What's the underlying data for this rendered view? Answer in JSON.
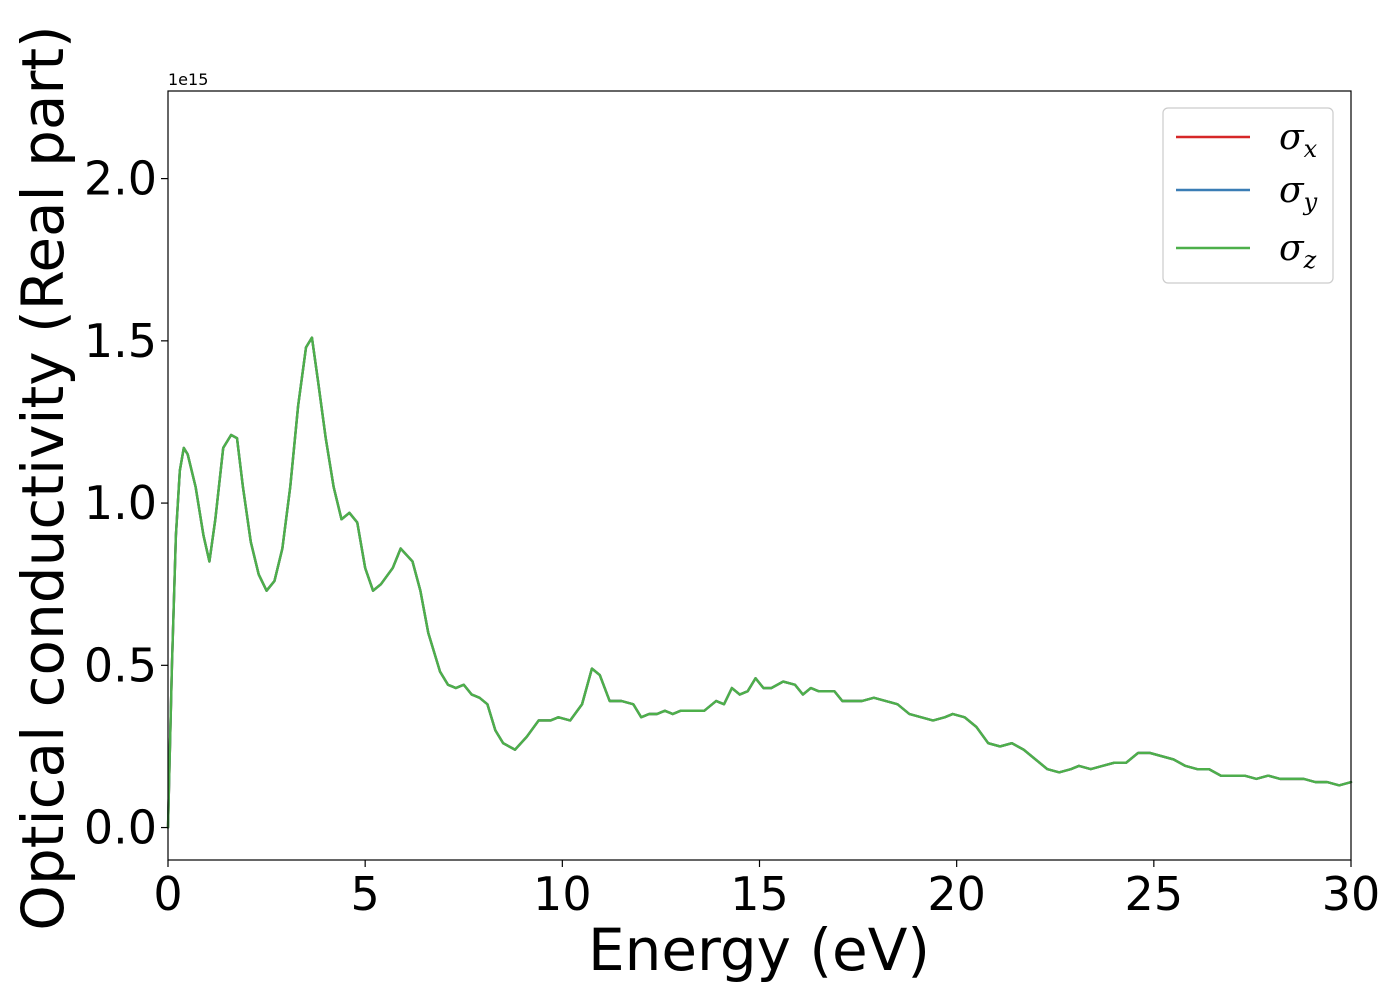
{
  "chart_data": {
    "type": "line",
    "xlabel": "Energy (eV)",
    "ylabel": "Optical conductivity (Real part)",
    "y_offset_text": "1e15",
    "xlim": [
      0,
      30
    ],
    "ylim": [
      -0.1,
      2.27
    ],
    "y_scale_factor": 1000000000000000.0,
    "x_ticks": [
      0,
      5,
      10,
      15,
      20,
      25,
      30
    ],
    "x_tick_labels": [
      "0",
      "5",
      "10",
      "15",
      "20",
      "25",
      "30"
    ],
    "y_ticks": [
      0.0,
      0.5,
      1.0,
      1.5,
      2.0
    ],
    "y_tick_labels": [
      "0.0",
      "0.5",
      "1.0",
      "1.5",
      "2.0"
    ],
    "grid": false,
    "legend_position": "top-right",
    "colors": {
      "sigma_x": "#d62728",
      "sigma_y": "#3a7db5",
      "sigma_z": "#4daf4a"
    },
    "x": [
      0,
      0.1,
      0.2,
      0.3,
      0.4,
      0.5,
      0.7,
      0.9,
      1.05,
      1.2,
      1.4,
      1.6,
      1.75,
      1.9,
      2.1,
      2.3,
      2.5,
      2.7,
      2.9,
      3.1,
      3.3,
      3.5,
      3.65,
      3.8,
      4.0,
      4.2,
      4.4,
      4.6,
      4.8,
      5.0,
      5.2,
      5.4,
      5.7,
      5.9,
      6.2,
      6.4,
      6.6,
      6.9,
      7.1,
      7.3,
      7.5,
      7.7,
      7.9,
      8.1,
      8.3,
      8.5,
      8.8,
      9.1,
      9.4,
      9.7,
      9.9,
      10.2,
      10.5,
      10.75,
      10.95,
      11.2,
      11.5,
      11.8,
      12.0,
      12.2,
      12.4,
      12.6,
      12.8,
      13.0,
      13.3,
      13.6,
      13.9,
      14.1,
      14.3,
      14.5,
      14.7,
      14.9,
      15.1,
      15.3,
      15.6,
      15.9,
      16.1,
      16.3,
      16.5,
      16.7,
      16.9,
      17.1,
      17.3,
      17.6,
      17.9,
      18.2,
      18.5,
      18.8,
      19.1,
      19.4,
      19.7,
      19.9,
      20.2,
      20.5,
      20.8,
      21.1,
      21.4,
      21.7,
      22.0,
      22.3,
      22.6,
      22.9,
      23.1,
      23.4,
      23.7,
      24.0,
      24.3,
      24.6,
      24.9,
      25.2,
      25.5,
      25.8,
      26.1,
      26.4,
      26.7,
      27.0,
      27.3,
      27.6,
      27.9,
      28.2,
      28.5,
      28.8,
      29.1,
      29.4,
      29.7,
      30.0
    ],
    "series": [
      {
        "name": "σx",
        "symbol": "σ",
        "sub": "x",
        "color_key": "sigma_x",
        "values": [
          0,
          0.5,
          0.9,
          1.1,
          1.17,
          1.15,
          1.05,
          0.9,
          0.82,
          0.95,
          1.17,
          1.21,
          1.2,
          1.05,
          0.88,
          0.78,
          0.73,
          0.76,
          0.86,
          1.05,
          1.3,
          1.48,
          1.51,
          1.38,
          1.2,
          1.05,
          0.95,
          0.97,
          0.94,
          0.8,
          0.73,
          0.75,
          0.8,
          0.86,
          0.82,
          0.73,
          0.6,
          0.48,
          0.44,
          0.43,
          0.44,
          0.41,
          0.4,
          0.38,
          0.3,
          0.26,
          0.24,
          0.28,
          0.33,
          0.33,
          0.34,
          0.33,
          0.38,
          0.49,
          0.47,
          0.39,
          0.39,
          0.38,
          0.34,
          0.35,
          0.35,
          0.36,
          0.35,
          0.36,
          0.36,
          0.36,
          0.39,
          0.38,
          0.43,
          0.41,
          0.42,
          0.46,
          0.43,
          0.43,
          0.45,
          0.44,
          0.41,
          0.43,
          0.42,
          0.42,
          0.42,
          0.39,
          0.39,
          0.39,
          0.4,
          0.39,
          0.38,
          0.35,
          0.34,
          0.33,
          0.34,
          0.35,
          0.34,
          0.31,
          0.26,
          0.25,
          0.26,
          0.24,
          0.21,
          0.18,
          0.17,
          0.18,
          0.19,
          0.18,
          0.19,
          0.2,
          0.2,
          0.23,
          0.23,
          0.22,
          0.21,
          0.19,
          0.18,
          0.18,
          0.16,
          0.16,
          0.16,
          0.15,
          0.16,
          0.15,
          0.15,
          0.15,
          0.14,
          0.14,
          0.13,
          0.14
        ]
      },
      {
        "name": "σy",
        "symbol": "σ",
        "sub": "y",
        "color_key": "sigma_y",
        "values": [
          0,
          0.5,
          0.9,
          1.1,
          1.17,
          1.15,
          1.05,
          0.9,
          0.82,
          0.95,
          1.17,
          1.21,
          1.2,
          1.05,
          0.88,
          0.78,
          0.73,
          0.76,
          0.86,
          1.05,
          1.3,
          1.48,
          1.51,
          1.38,
          1.2,
          1.05,
          0.95,
          0.97,
          0.94,
          0.8,
          0.73,
          0.75,
          0.8,
          0.86,
          0.82,
          0.73,
          0.6,
          0.48,
          0.44,
          0.43,
          0.44,
          0.41,
          0.4,
          0.38,
          0.3,
          0.26,
          0.24,
          0.28,
          0.33,
          0.33,
          0.34,
          0.33,
          0.38,
          0.49,
          0.47,
          0.39,
          0.39,
          0.38,
          0.34,
          0.35,
          0.35,
          0.36,
          0.35,
          0.36,
          0.36,
          0.36,
          0.39,
          0.38,
          0.43,
          0.41,
          0.42,
          0.46,
          0.43,
          0.43,
          0.45,
          0.44,
          0.41,
          0.43,
          0.42,
          0.42,
          0.42,
          0.39,
          0.39,
          0.39,
          0.4,
          0.39,
          0.38,
          0.35,
          0.34,
          0.33,
          0.34,
          0.35,
          0.34,
          0.31,
          0.26,
          0.25,
          0.26,
          0.24,
          0.21,
          0.18,
          0.17,
          0.18,
          0.19,
          0.18,
          0.19,
          0.2,
          0.2,
          0.23,
          0.23,
          0.22,
          0.21,
          0.19,
          0.18,
          0.18,
          0.16,
          0.16,
          0.16,
          0.15,
          0.16,
          0.15,
          0.15,
          0.15,
          0.14,
          0.14,
          0.13,
          0.14
        ]
      },
      {
        "name": "σz",
        "symbol": "σ",
        "sub": "z",
        "color_key": "sigma_z",
        "values": [
          0,
          0.5,
          0.9,
          1.1,
          1.17,
          1.15,
          1.05,
          0.9,
          0.82,
          0.95,
          1.17,
          1.21,
          1.2,
          1.05,
          0.88,
          0.78,
          0.73,
          0.76,
          0.86,
          1.05,
          1.3,
          1.48,
          1.51,
          1.38,
          1.2,
          1.05,
          0.95,
          0.97,
          0.94,
          0.8,
          0.73,
          0.75,
          0.8,
          0.86,
          0.82,
          0.73,
          0.6,
          0.48,
          0.44,
          0.43,
          0.44,
          0.41,
          0.4,
          0.38,
          0.3,
          0.26,
          0.24,
          0.28,
          0.33,
          0.33,
          0.34,
          0.33,
          0.38,
          0.49,
          0.47,
          0.39,
          0.39,
          0.38,
          0.34,
          0.35,
          0.35,
          0.36,
          0.35,
          0.36,
          0.36,
          0.36,
          0.39,
          0.38,
          0.43,
          0.41,
          0.42,
          0.46,
          0.43,
          0.43,
          0.45,
          0.44,
          0.41,
          0.43,
          0.42,
          0.42,
          0.42,
          0.39,
          0.39,
          0.39,
          0.4,
          0.39,
          0.38,
          0.35,
          0.34,
          0.33,
          0.34,
          0.35,
          0.34,
          0.31,
          0.26,
          0.25,
          0.26,
          0.24,
          0.21,
          0.18,
          0.17,
          0.18,
          0.19,
          0.18,
          0.19,
          0.2,
          0.2,
          0.23,
          0.23,
          0.22,
          0.21,
          0.19,
          0.18,
          0.18,
          0.16,
          0.16,
          0.16,
          0.15,
          0.16,
          0.15,
          0.15,
          0.15,
          0.14,
          0.14,
          0.13,
          0.14
        ]
      }
    ]
  }
}
